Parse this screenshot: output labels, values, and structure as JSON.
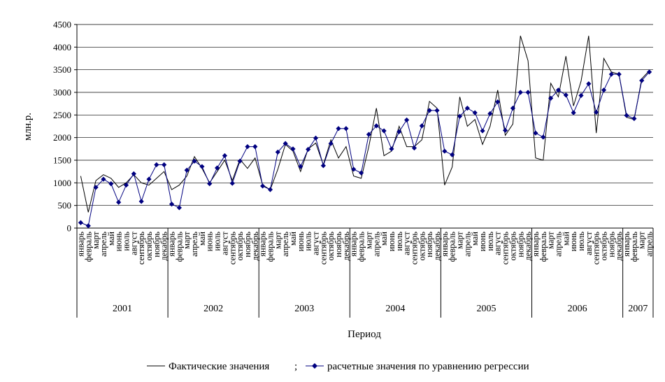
{
  "chart_data": {
    "type": "line",
    "ylabel": "млн.р.",
    "xlabel": "Период",
    "ylim": [
      0,
      4500
    ],
    "yticks": [
      0,
      500,
      1000,
      1500,
      2000,
      2500,
      3000,
      3500,
      4000,
      4500
    ],
    "grid": "horizontal",
    "legend_position": "bottom",
    "legend_separator": ";",
    "years": [
      {
        "label": "2001",
        "count": 12
      },
      {
        "label": "2002",
        "count": 12
      },
      {
        "label": "2003",
        "count": 12
      },
      {
        "label": "2004",
        "count": 12
      },
      {
        "label": "2005",
        "count": 12
      },
      {
        "label": "2006",
        "count": 12
      },
      {
        "label": "2007",
        "count": 4
      }
    ],
    "x": [
      "январь",
      "февраль",
      "март",
      "апрель",
      "май",
      "июнь",
      "июль",
      "август",
      "сентябрь",
      "октябрь",
      "ноябрь",
      "декабрь",
      "январь",
      "февраль",
      "март",
      "апрель",
      "май",
      "июнь",
      "июль",
      "август",
      "сентябрь",
      "октябрь",
      "ноябрь",
      "декабрь",
      "январь",
      "февраль",
      "март",
      "апрель",
      "май",
      "июнь",
      "июль",
      "август",
      "сентябрь",
      "октябрь",
      "ноябрь",
      "декабрь",
      "январь",
      "февраль",
      "март",
      "апрель",
      "май",
      "июнь",
      "июль",
      "август",
      "сентябрь",
      "октябрь",
      "ноябрь",
      "декабрь",
      "январь",
      "февраль",
      "март",
      "апрель",
      "май",
      "июнь",
      "июль",
      "август",
      "сентябрь",
      "октябрь",
      "ноябрь",
      "декабрь",
      "январь",
      "февраль",
      "март",
      "апрель",
      "май",
      "июнь",
      "июль",
      "август",
      "сентябрь",
      "октябрь",
      "ноябрь",
      "декабрь",
      "январь",
      "февраль",
      "март",
      "апрель"
    ],
    "series": [
      {
        "name": "Фактические значения",
        "color": "#000000",
        "marker": "none",
        "values": [
          1150,
          350,
          1050,
          1180,
          1100,
          900,
          1000,
          1180,
          1000,
          950,
          1100,
          1250,
          850,
          950,
          1150,
          1580,
          1320,
          1000,
          1250,
          1500,
          1050,
          1520,
          1320,
          1550,
          950,
          850,
          1300,
          1850,
          1700,
          1250,
          1750,
          1880,
          1400,
          1950,
          1550,
          1800,
          1150,
          1100,
          1800,
          2650,
          1600,
          1700,
          2250,
          1800,
          1800,
          1950,
          2800,
          2650,
          950,
          1350,
          2900,
          2250,
          2400,
          1850,
          2250,
          3050,
          2050,
          2300,
          4250,
          3700,
          1550,
          1500,
          3200,
          2900,
          3800,
          2700,
          3250,
          4250,
          2100,
          3750,
          3450,
          3400,
          2450,
          2400,
          3300,
          3480
        ]
      },
      {
        "name": "расчетные значения по уравнению регрессии",
        "color": "#000080",
        "marker": "diamond",
        "values": [
          120,
          50,
          900,
          1080,
          980,
          570,
          950,
          1200,
          590,
          1080,
          1400,
          1400,
          530,
          450,
          1280,
          1480,
          1360,
          980,
          1330,
          1600,
          990,
          1480,
          1800,
          1800,
          930,
          850,
          1680,
          1870,
          1750,
          1360,
          1740,
          1990,
          1380,
          1870,
          2200,
          2200,
          1300,
          1220,
          2070,
          2260,
          2150,
          1750,
          2130,
          2390,
          1770,
          2260,
          2600,
          2600,
          1700,
          1620,
          2470,
          2650,
          2550,
          2150,
          2530,
          2790,
          2160,
          2650,
          3000,
          3000,
          2100,
          2010,
          2870,
          3050,
          2940,
          2550,
          2930,
          3190,
          2560,
          3050,
          3400,
          3400,
          2490,
          2420,
          3260,
          3450
        ]
      }
    ]
  }
}
